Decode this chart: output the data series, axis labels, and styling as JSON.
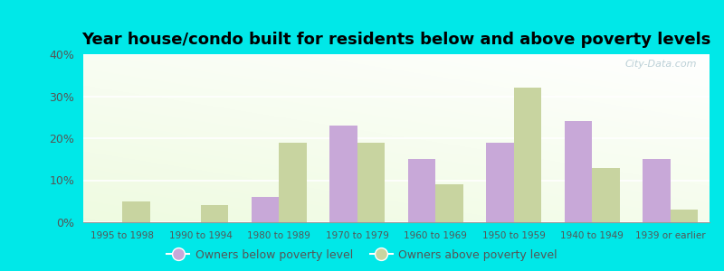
{
  "title": "Year house/condo built for residents below and above poverty levels",
  "categories": [
    "1995 to 1998",
    "1990 to 1994",
    "1980 to 1989",
    "1970 to 1979",
    "1960 to 1969",
    "1950 to 1959",
    "1940 to 1949",
    "1939 or earlier"
  ],
  "below_poverty": [
    0,
    0,
    6,
    23,
    15,
    19,
    24,
    15
  ],
  "above_poverty": [
    5,
    4,
    19,
    19,
    9,
    32,
    13,
    3
  ],
  "below_color": "#c8a8d8",
  "above_color": "#c8d4a0",
  "ylim": [
    0,
    40
  ],
  "yticks": [
    0,
    10,
    20,
    30,
    40
  ],
  "outer_bg": "#00e8e8",
  "legend_below": "Owners below poverty level",
  "legend_above": "Owners above poverty level",
  "bar_width": 0.35,
  "title_fontsize": 13,
  "watermark": "City-Data.com"
}
